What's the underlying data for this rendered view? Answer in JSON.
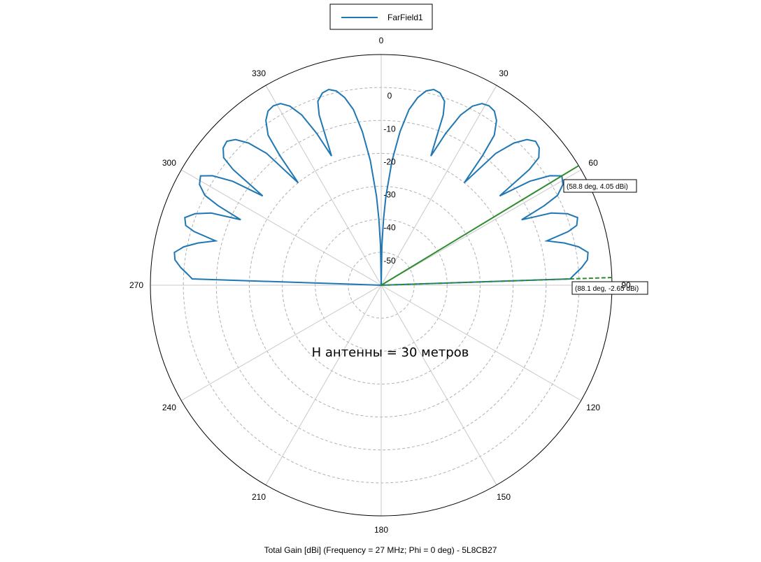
{
  "chart_data": {
    "type": "polar",
    "caption": "Total Gain [dBi] (Frequency = 27 MHz; Phi = 0 deg) - 5L8CB27",
    "overlay_text": "H антенны = 30 метров",
    "angle_ticks": [
      "0",
      "30",
      "60",
      "90",
      "120",
      "150",
      "180",
      "210",
      "240",
      "270",
      "300",
      "330"
    ],
    "angle_tick_values": [
      0,
      30,
      60,
      90,
      120,
      150,
      180,
      210,
      240,
      270,
      300,
      330
    ],
    "radial_ticks": [
      "0",
      "-10",
      "-20",
      "-30",
      "-40",
      "-50"
    ],
    "radial_tick_values": [
      0,
      -10,
      -20,
      -30,
      -40,
      -50
    ],
    "rlim": [
      -60,
      10
    ],
    "grid": true,
    "legend_position": "top-center",
    "colors": {
      "series": "#1f77b4",
      "marker": "#2e8b2e",
      "grid": "#b0b0b0",
      "axis": "#000000"
    },
    "series": [
      {
        "name": "FarField1",
        "theta": [
          0,
          1,
          2,
          3,
          5,
          7,
          9,
          11,
          13,
          15,
          17,
          19,
          20,
          21,
          23,
          25,
          27,
          29,
          31,
          33,
          35,
          37,
          38,
          39,
          41,
          43,
          45,
          47,
          49,
          51,
          52,
          53,
          55,
          57,
          58.8,
          61,
          63,
          64,
          65,
          67,
          69,
          71,
          73,
          74,
          75,
          77,
          79,
          81,
          83,
          85,
          87,
          88.1,
          90
        ],
        "gain": [
          -60,
          -48,
          -40,
          -33,
          -22,
          -13,
          -6,
          -2,
          0.5,
          1.5,
          1,
          -1,
          -5,
          -18,
          -10,
          -3,
          1,
          3,
          3.5,
          3,
          1,
          -3,
          -10,
          -20,
          -7,
          -1,
          2.5,
          4,
          3.5,
          1.5,
          -3,
          -15,
          -5,
          1,
          4.05,
          3,
          0,
          -5,
          -13,
          -4,
          0.5,
          3,
          2,
          -1,
          -8,
          -3,
          1,
          3.5,
          3,
          1,
          -1.5,
          -2.65,
          -60
        ]
      }
    ],
    "markers": [
      {
        "label": "(58.8 deg, 4.05 dBi)",
        "theta": 58.8,
        "gain": 4.05
      },
      {
        "label": "(88.1 deg, -2.65 dBi)",
        "theta": 88.1,
        "gain": -2.65
      }
    ]
  }
}
